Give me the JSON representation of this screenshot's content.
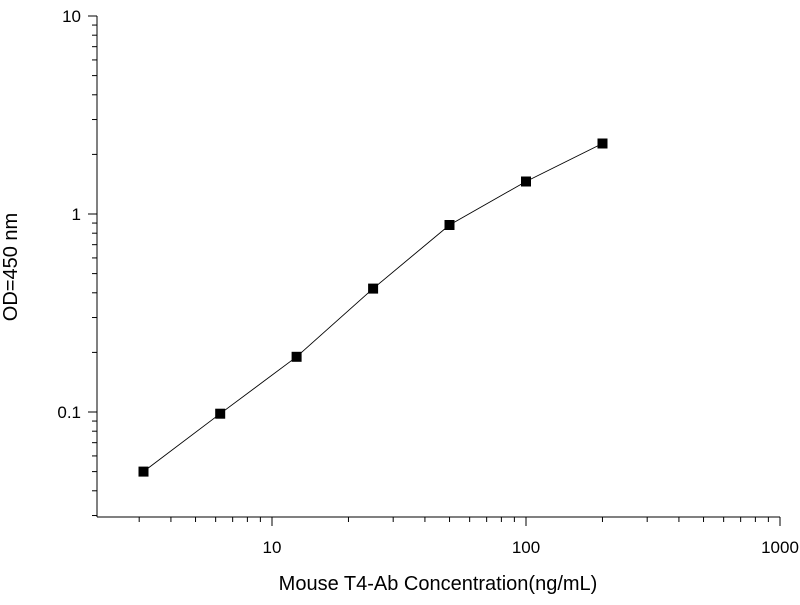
{
  "chart_data": {
    "type": "line",
    "title": "",
    "xlabel": "Mouse T4-Ab Concentration(ng/mL)",
    "ylabel": "OD=450 nm",
    "xscale": "log",
    "yscale": "log",
    "xlim": [
      2,
      1000
    ],
    "ylim": [
      0.02,
      10
    ],
    "x_ticks": [
      10,
      100,
      1000
    ],
    "x_tick_labels": [
      "10",
      "100",
      "1000"
    ],
    "y_ticks": [
      0.1,
      1,
      10
    ],
    "y_tick_labels": [
      "0.1",
      "1",
      "10"
    ],
    "grid": false,
    "legend": "none",
    "marker": "square",
    "series": [
      {
        "x": [
          3.12,
          6.25,
          12.5,
          25,
          50,
          100,
          200
        ],
        "y": [
          0.05,
          0.098,
          0.19,
          0.42,
          0.88,
          1.46,
          2.27
        ]
      }
    ],
    "colors": {
      "marker": "#000000",
      "line": "#000000",
      "axis": "#000000"
    }
  }
}
